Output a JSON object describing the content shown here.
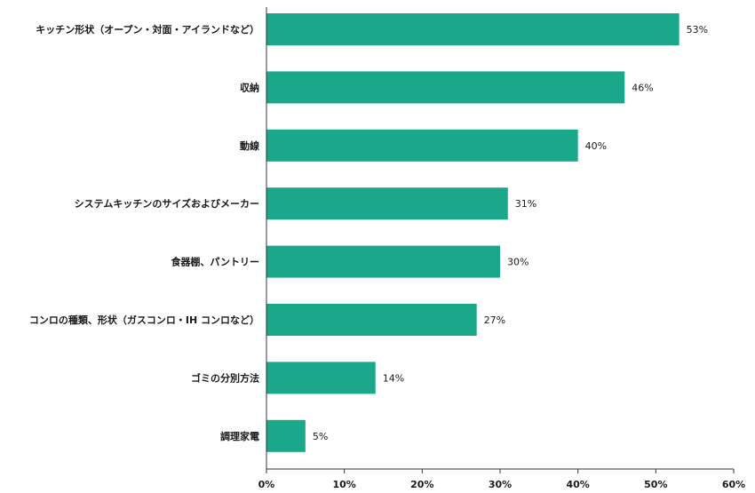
{
  "chart_data": {
    "type": "bar",
    "orientation": "horizontal",
    "categories": [
      "キッチン形状（オープン・対面・アイランドなど）",
      "収納",
      "動線",
      "システムキッチンのサイズおよびメーカー",
      "食器棚、パントリー",
      "コンロの種類、形状（ガスコンロ・IH コンロなど）",
      "ゴミの分別方法",
      "調理家電"
    ],
    "values": [
      53,
      46,
      40,
      31,
      30,
      27,
      14,
      5
    ],
    "value_labels": [
      "53%",
      "46%",
      "40%",
      "31%",
      "30%",
      "27%",
      "14%",
      "5%"
    ],
    "xlim": [
      0,
      60
    ],
    "xticks": [
      0,
      10,
      20,
      30,
      40,
      50,
      60
    ],
    "xtick_labels": [
      "0%",
      "10%",
      "20%",
      "30%",
      "40%",
      "50%",
      "60%"
    ],
    "title": "",
    "xlabel": "",
    "ylabel": "",
    "grid": false,
    "bar_color": "#1ba78a",
    "axis_color": "#333333"
  }
}
